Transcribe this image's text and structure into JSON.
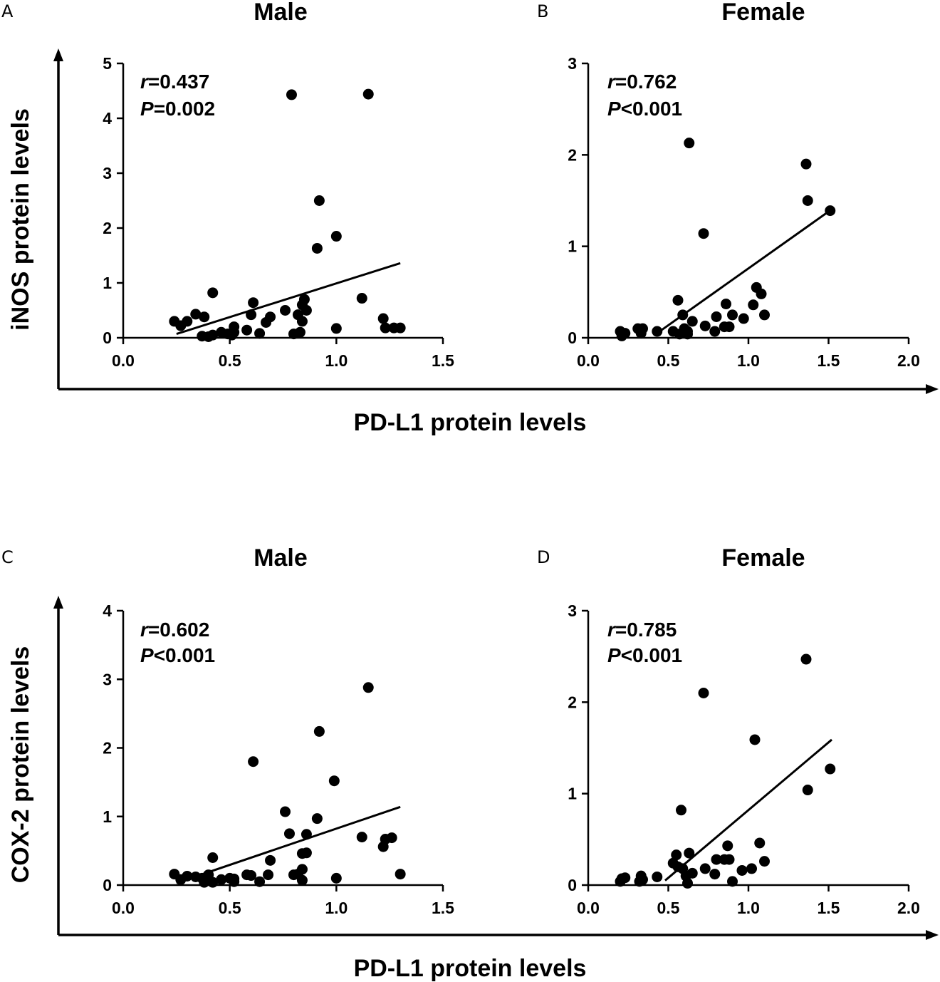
{
  "colors": {
    "ink": "#000000",
    "background": "#ffffff"
  },
  "figure": {
    "xlabel": "PD-L1 protein levels",
    "row_ylabels": [
      "iNOS protein levels",
      "COX-2 protein levels"
    ]
  },
  "chart_data": [
    {
      "panel": "A",
      "type": "scatter",
      "title": "Male",
      "xlabel": "PD-L1 protein levels",
      "ylabel": "iNOS protein levels",
      "xlim": [
        0,
        1.5
      ],
      "ylim": [
        0,
        5
      ],
      "xticks": [
        "0.0",
        "0.5",
        "1.0",
        "1.5"
      ],
      "yticks": [
        "0",
        "1",
        "2",
        "3",
        "4",
        "5"
      ],
      "stat_r_symbol": "r",
      "stat_r_value": "=0.437",
      "stat_p_symbol": "P",
      "stat_p_value": "=0.002",
      "points": [
        [
          0.24,
          0.3
        ],
        [
          0.27,
          0.22
        ],
        [
          0.3,
          0.3
        ],
        [
          0.34,
          0.43
        ],
        [
          0.38,
          0.38
        ],
        [
          0.37,
          0.03
        ],
        [
          0.4,
          0.02
        ],
        [
          0.42,
          0.05
        ],
        [
          0.42,
          0.82
        ],
        [
          0.46,
          0.1
        ],
        [
          0.49,
          0.07
        ],
        [
          0.51,
          0.05
        ],
        [
          0.52,
          0.2
        ],
        [
          0.52,
          0.1
        ],
        [
          0.58,
          0.14
        ],
        [
          0.6,
          0.42
        ],
        [
          0.61,
          0.64
        ],
        [
          0.64,
          0.08
        ],
        [
          0.67,
          0.28
        ],
        [
          0.69,
          0.38
        ],
        [
          0.76,
          0.5
        ],
        [
          0.79,
          4.43
        ],
        [
          0.8,
          0.07
        ],
        [
          0.82,
          0.42
        ],
        [
          0.83,
          0.1
        ],
        [
          0.84,
          0.3
        ],
        [
          0.84,
          0.6
        ],
        [
          0.85,
          0.7
        ],
        [
          0.86,
          0.5
        ],
        [
          0.91,
          1.63
        ],
        [
          0.92,
          2.5
        ],
        [
          1.0,
          1.85
        ],
        [
          1.0,
          0.17
        ],
        [
          1.12,
          0.72
        ],
        [
          1.15,
          4.44
        ],
        [
          1.22,
          0.35
        ],
        [
          1.23,
          0.18
        ],
        [
          1.27,
          0.18
        ],
        [
          1.3,
          0.18
        ]
      ],
      "fit_x": [
        0.25,
        1.3
      ],
      "fit_y": [
        0.07,
        1.36
      ]
    },
    {
      "panel": "B",
      "type": "scatter",
      "title": "Female",
      "xlabel": "PD-L1 protein levels",
      "ylabel": "iNOS protein levels",
      "xlim": [
        0,
        2
      ],
      "ylim": [
        0,
        3
      ],
      "xticks": [
        "0.0",
        "0.5",
        "1.0",
        "1.5",
        "2.0"
      ],
      "yticks": [
        "0",
        "1",
        "2",
        "3"
      ],
      "stat_r_symbol": "r",
      "stat_r_value": "=0.762",
      "stat_p_symbol": "P",
      "stat_p_value": "<0.001",
      "points": [
        [
          0.2,
          0.07
        ],
        [
          0.21,
          0.02
        ],
        [
          0.23,
          0.05
        ],
        [
          0.31,
          0.1
        ],
        [
          0.33,
          0.05
        ],
        [
          0.34,
          0.1
        ],
        [
          0.43,
          0.07
        ],
        [
          0.53,
          0.07
        ],
        [
          0.56,
          0.41
        ],
        [
          0.57,
          0.04
        ],
        [
          0.59,
          0.25
        ],
        [
          0.6,
          0.1
        ],
        [
          0.62,
          0.04
        ],
        [
          0.62,
          0.07
        ],
        [
          0.63,
          2.13
        ],
        [
          0.65,
          0.18
        ],
        [
          0.72,
          1.14
        ],
        [
          0.73,
          0.13
        ],
        [
          0.79,
          0.07
        ],
        [
          0.8,
          0.23
        ],
        [
          0.85,
          0.12
        ],
        [
          0.86,
          0.37
        ],
        [
          0.88,
          0.12
        ],
        [
          0.9,
          0.25
        ],
        [
          0.97,
          0.21
        ],
        [
          1.03,
          0.36
        ],
        [
          1.05,
          0.55
        ],
        [
          1.08,
          0.48
        ],
        [
          1.1,
          0.25
        ],
        [
          1.36,
          1.9
        ],
        [
          1.37,
          1.5
        ],
        [
          1.51,
          1.39
        ]
      ],
      "fit_x": [
        0.43,
        1.5
      ],
      "fit_y": [
        0.05,
        1.38
      ]
    },
    {
      "panel": "C",
      "type": "scatter",
      "title": "Male",
      "xlabel": "PD-L1 protein levels",
      "ylabel": "COX-2 protein levels",
      "xlim": [
        0,
        1.5
      ],
      "ylim": [
        0,
        4
      ],
      "xticks": [
        "0.0",
        "0.5",
        "1.0",
        "1.5"
      ],
      "yticks": [
        "0",
        "1",
        "2",
        "3",
        "4"
      ],
      "stat_r_symbol": "r",
      "stat_r_value": "=0.602",
      "stat_p_symbol": "P",
      "stat_p_value": "<0.001",
      "points": [
        [
          0.24,
          0.16
        ],
        [
          0.27,
          0.08
        ],
        [
          0.3,
          0.13
        ],
        [
          0.34,
          0.12
        ],
        [
          0.37,
          0.1
        ],
        [
          0.38,
          0.04
        ],
        [
          0.4,
          0.15
        ],
        [
          0.42,
          0.04
        ],
        [
          0.42,
          0.4
        ],
        [
          0.46,
          0.08
        ],
        [
          0.5,
          0.1
        ],
        [
          0.52,
          0.05
        ],
        [
          0.52,
          0.09
        ],
        [
          0.58,
          0.15
        ],
        [
          0.6,
          0.14
        ],
        [
          0.61,
          1.8
        ],
        [
          0.64,
          0.05
        ],
        [
          0.68,
          0.15
        ],
        [
          0.69,
          0.36
        ],
        [
          0.76,
          1.07
        ],
        [
          0.78,
          0.75
        ],
        [
          0.8,
          0.15
        ],
        [
          0.82,
          0.16
        ],
        [
          0.84,
          0.07
        ],
        [
          0.84,
          0.23
        ],
        [
          0.84,
          0.46
        ],
        [
          0.86,
          0.47
        ],
        [
          0.86,
          0.74
        ],
        [
          0.91,
          0.97
        ],
        [
          0.92,
          2.24
        ],
        [
          0.99,
          1.52
        ],
        [
          1.0,
          0.1
        ],
        [
          1.12,
          0.7
        ],
        [
          1.15,
          2.88
        ],
        [
          1.22,
          0.56
        ],
        [
          1.23,
          0.67
        ],
        [
          1.26,
          0.69
        ],
        [
          1.3,
          0.16
        ]
      ],
      "fit_x": [
        0.25,
        1.3
      ],
      "fit_y": [
        0.03,
        1.14
      ]
    },
    {
      "panel": "D",
      "type": "scatter",
      "title": "Female",
      "xlabel": "PD-L1 protein levels",
      "ylabel": "COX-2 protein levels",
      "xlim": [
        0,
        2
      ],
      "ylim": [
        0,
        3
      ],
      "xticks": [
        "0.0",
        "0.5",
        "1.0",
        "1.5",
        "2.0"
      ],
      "yticks": [
        "0",
        "1",
        "2",
        "3"
      ],
      "stat_r_symbol": "r",
      "stat_r_value": "=0.785",
      "stat_p_symbol": "P",
      "stat_p_value": "<0.001",
      "points": [
        [
          0.2,
          0.04
        ],
        [
          0.21,
          0.07
        ],
        [
          0.23,
          0.08
        ],
        [
          0.32,
          0.04
        ],
        [
          0.33,
          0.1
        ],
        [
          0.34,
          0.06
        ],
        [
          0.43,
          0.09
        ],
        [
          0.53,
          0.24
        ],
        [
          0.55,
          0.33
        ],
        [
          0.56,
          0.2
        ],
        [
          0.58,
          0.82
        ],
        [
          0.59,
          0.18
        ],
        [
          0.61,
          0.1
        ],
        [
          0.62,
          0.02
        ],
        [
          0.63,
          0.35
        ],
        [
          0.65,
          0.13
        ],
        [
          0.72,
          2.1
        ],
        [
          0.73,
          0.18
        ],
        [
          0.79,
          0.12
        ],
        [
          0.8,
          0.28
        ],
        [
          0.85,
          0.28
        ],
        [
          0.87,
          0.43
        ],
        [
          0.88,
          0.28
        ],
        [
          0.9,
          0.04
        ],
        [
          0.96,
          0.16
        ],
        [
          1.02,
          0.18
        ],
        [
          1.04,
          1.59
        ],
        [
          1.07,
          0.46
        ],
        [
          1.1,
          0.26
        ],
        [
          1.36,
          2.47
        ],
        [
          1.37,
          1.04
        ],
        [
          1.51,
          1.27
        ]
      ],
      "fit_x": [
        0.48,
        1.52
      ],
      "fit_y": [
        0.05,
        1.59
      ]
    }
  ]
}
